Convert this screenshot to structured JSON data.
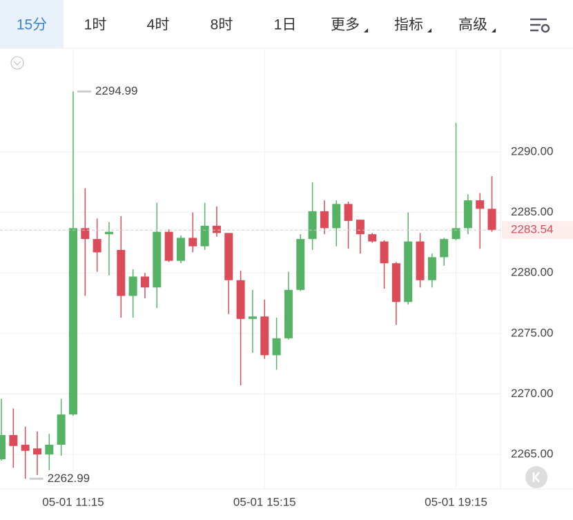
{
  "toolbar": {
    "tabs": [
      "15分",
      "1时",
      "4时",
      "8时",
      "1日",
      "更多",
      "指标",
      "高级"
    ],
    "dropdown_tabs": [
      5,
      6,
      7
    ],
    "active": 0
  },
  "chart_data": {
    "type": "candlestick",
    "categories": [
      null,
      null,
      null,
      null,
      null,
      null,
      "05-01 11:15",
      null,
      null,
      null,
      null,
      null,
      null,
      null,
      null,
      null,
      null,
      null,
      null,
      null,
      null,
      null,
      "05-01 15:15",
      null,
      null,
      null,
      null,
      null,
      null,
      null,
      null,
      null,
      null,
      null,
      null,
      null,
      null,
      null,
      "05-01 19:15",
      null,
      null,
      null
    ],
    "open": [
      2264.6,
      2266.6,
      2265.8,
      2265.5,
      2265.0,
      2265.8,
      2268.3,
      2283.7,
      2282.8,
      2283.2,
      2281.9,
      2278.1,
      2279.7,
      2278.8,
      2283.4,
      2281.0,
      2282.9,
      2282.2,
      2283.9,
      2283.3,
      2279.4,
      2276.2,
      2276.4,
      2273.2,
      2274.6,
      2278.6,
      2282.8,
      2285.1,
      2283.7,
      2285.7,
      2284.4,
      2283.2,
      2282.6,
      2280.8,
      2277.6,
      2282.6,
      2279.4,
      2281.3,
      2282.8,
      2283.7,
      2286.0,
      2285.3
    ],
    "high": [
      2269.6,
      2268.8,
      2267.3,
      2266.9,
      2266.7,
      2269.6,
      2294.99,
      2287.0,
      2284.5,
      2284.2,
      2284.7,
      2280.3,
      2280.0,
      2285.8,
      2283.6,
      2283.1,
      2285.0,
      2285.8,
      2285.5,
      2283.3,
      2280.2,
      2278.6,
      2277.8,
      2276.3,
      2280.1,
      2283.2,
      2287.5,
      2286.0,
      2286.0,
      2285.9,
      2284.4,
      2283.3,
      2282.7,
      2280.9,
      2285.0,
      2283.3,
      2281.6,
      2282.9,
      2292.4,
      2286.5,
      2286.6,
      2288.0
    ],
    "low": [
      2264.5,
      2263.9,
      2262.99,
      2263.3,
      2263.7,
      2264.9,
      2268.2,
      2278.1,
      2280.1,
      2279.8,
      2276.3,
      2276.3,
      2277.9,
      2277.1,
      2280.9,
      2280.8,
      2281.7,
      2281.9,
      2283.0,
      2276.6,
      2270.7,
      2273.4,
      2272.9,
      2272.0,
      2274.5,
      2278.5,
      2281.9,
      2283.2,
      2282.2,
      2282.0,
      2281.6,
      2282.5,
      2278.7,
      2275.7,
      2277.4,
      2278.8,
      2278.8,
      2280.6,
      2282.7,
      2283.2,
      2282.0,
      2283.4
    ],
    "close": [
      2266.6,
      2265.7,
      2265.3,
      2265.0,
      2265.8,
      2268.3,
      2283.7,
      2282.8,
      2281.7,
      2283.4,
      2278.1,
      2279.7,
      2278.8,
      2283.4,
      2281.0,
      2282.9,
      2282.2,
      2283.9,
      2283.3,
      2279.4,
      2276.2,
      2276.4,
      2273.2,
      2274.6,
      2278.6,
      2282.8,
      2285.1,
      2283.7,
      2285.7,
      2284.3,
      2283.2,
      2282.6,
      2280.8,
      2277.6,
      2282.6,
      2279.4,
      2281.3,
      2282.8,
      2283.7,
      2286.0,
      2285.3,
      2283.54
    ],
    "up_color": "#56b365",
    "down_color": "#dc4b58",
    "ylim": [
      2262.15,
      2298.56
    ],
    "yticks": [
      {
        "value": 2265,
        "label": "2265.00"
      },
      {
        "value": 2270,
        "label": "2270.00"
      },
      {
        "value": 2275,
        "label": "2275.00"
      },
      {
        "value": 2280,
        "label": "2280.00"
      },
      {
        "value": 2285,
        "label": "2285.00"
      },
      {
        "value": 2290,
        "label": "2290.00"
      }
    ],
    "grid": true,
    "max_label": 2294.99,
    "min_label": 2262.99,
    "last_price": 2283.54
  }
}
